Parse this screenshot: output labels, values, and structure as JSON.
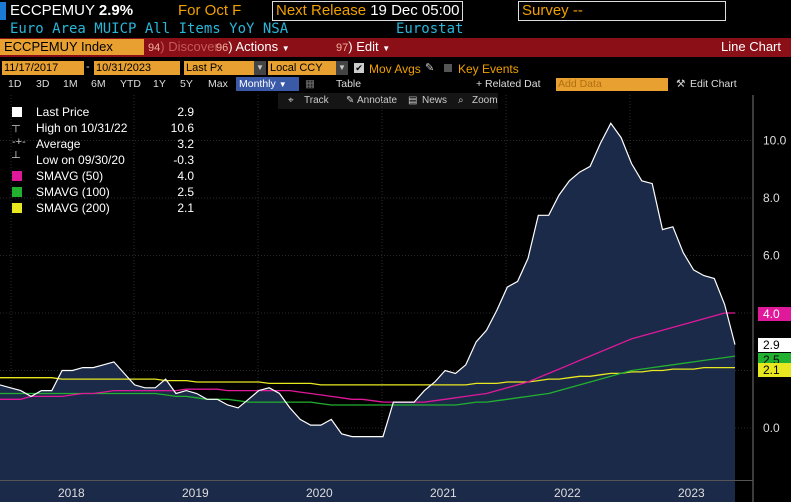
{
  "header": {
    "ticker": "ECCPEMUY",
    "last": "2.9%",
    "for_label": "For Oct F",
    "next_release_label": "Next Release",
    "next_release_value": "19 Dec 05:00",
    "survey_label": "Survey --",
    "description": "Euro Area MUICP All Items YoY NSA",
    "source": "Eurostat"
  },
  "toolbar": {
    "index_value": "ECCPEMUY Index",
    "discover_num": "94",
    "discover_label": "Discover",
    "actions_num": "96",
    "actions_label": "Actions",
    "edit_num": "97",
    "edit_label": "Edit",
    "view_label": "Line Chart"
  },
  "controls": {
    "start_date": "11/17/2017",
    "end_date": "10/31/2023",
    "field": "Last Px",
    "currency": "Local CCY",
    "mov_avgs_label": "Mov Avgs",
    "key_events_label": "Key Events",
    "periods": [
      "1D",
      "3D",
      "1M",
      "6M",
      "YTD",
      "1Y",
      "5Y",
      "Max"
    ],
    "frequency": "Monthly",
    "table_label": "Table",
    "related_data_label": "+ Related Dat",
    "add_data_placeholder": "Add Data",
    "edit_chart_label": "Edit Chart"
  },
  "chart_tools": {
    "track": "Track",
    "annotate": "Annotate",
    "news": "News",
    "zoom": "Zoom"
  },
  "legend": {
    "last_price_label": "Last Price",
    "last_price_value": "2.9",
    "high_label": "High on 10/31/22",
    "high_value": "10.6",
    "average_label": "Average",
    "average_value": "3.2",
    "low_label": "Low on 09/30/20",
    "low_value": "-0.3",
    "sma50_label": "SMAVG (50)",
    "sma50_value": "4.0",
    "sma100_label": "SMAVG (100)",
    "sma100_value": "2.5",
    "sma200_label": "SMAVG (200)",
    "sma200_value": "2.1"
  },
  "colors": {
    "area_fill": "#1b2a48",
    "price_line": "#ffffff",
    "sma50": "#e0189a",
    "sma100": "#22b030",
    "sma200": "#e8e820",
    "accent_orange": "#e8a030",
    "header_red": "#8a0f16"
  },
  "chart_data": {
    "type": "area",
    "y_ticks": [
      "0.0",
      "2.0",
      "4.0",
      "6.0",
      "8.0",
      "10.0"
    ],
    "ylim": [
      -1.2,
      11.4
    ],
    "x_ticks": [
      "2018",
      "2019",
      "2020",
      "2021",
      "2022",
      "2023"
    ],
    "x_start": "2017-11",
    "series": [
      {
        "name": "Last Price",
        "values": [
          1.5,
          1.4,
          1.3,
          1.1,
          1.3,
          1.3,
          2.0,
          2.0,
          2.1,
          2.1,
          2.2,
          2.3,
          1.9,
          1.5,
          1.4,
          1.4,
          1.7,
          1.2,
          1.3,
          1.2,
          1.0,
          1.0,
          0.8,
          0.7,
          1.0,
          1.3,
          1.4,
          1.2,
          0.7,
          0.3,
          0.1,
          0.1,
          0.3,
          -0.2,
          -0.3,
          -0.3,
          -0.3,
          -0.3,
          0.9,
          0.9,
          0.9,
          1.3,
          1.6,
          2.0,
          1.9,
          2.2,
          3.0,
          3.4,
          4.1,
          4.9,
          5.1,
          5.9,
          7.4,
          7.4,
          8.1,
          8.6,
          8.9,
          9.1,
          9.9,
          10.6,
          10.1,
          9.2,
          8.6,
          8.5,
          6.9,
          7.0,
          6.1,
          5.5,
          5.3,
          5.2,
          4.3,
          2.9
        ]
      },
      {
        "name": "SMAVG (50)",
        "values": [
          1.0,
          1.0,
          1.0,
          1.1,
          1.1,
          1.1,
          1.1,
          1.15,
          1.2,
          1.2,
          1.25,
          1.3,
          1.3,
          1.3,
          1.3,
          1.3,
          1.3,
          1.3,
          1.35,
          1.35,
          1.35,
          1.35,
          1.3,
          1.3,
          1.3,
          1.3,
          1.3,
          1.3,
          1.3,
          1.25,
          1.2,
          1.15,
          1.1,
          1.05,
          1.0,
          1.0,
          0.95,
          0.9,
          0.9,
          0.9,
          0.9,
          0.9,
          0.95,
          1.0,
          1.05,
          1.1,
          1.15,
          1.2,
          1.3,
          1.4,
          1.5,
          1.6,
          1.75,
          1.9,
          2.05,
          2.2,
          2.35,
          2.5,
          2.65,
          2.8,
          2.95,
          3.1,
          3.2,
          3.3,
          3.4,
          3.5,
          3.6,
          3.7,
          3.8,
          3.9,
          4.0,
          4.0
        ]
      },
      {
        "name": "SMAVG (100)",
        "values": [
          1.2,
          1.2,
          1.2,
          1.2,
          1.2,
          1.2,
          1.2,
          1.2,
          1.2,
          1.2,
          1.2,
          1.2,
          1.2,
          1.2,
          1.2,
          1.2,
          1.15,
          1.1,
          1.1,
          1.05,
          1.0,
          1.0,
          1.0,
          0.95,
          0.9,
          0.9,
          0.9,
          0.9,
          0.9,
          0.9,
          0.9,
          0.85,
          0.8,
          0.8,
          0.8,
          0.8,
          0.8,
          0.8,
          0.8,
          0.8,
          0.8,
          0.8,
          0.8,
          0.8,
          0.8,
          0.85,
          0.9,
          0.9,
          0.95,
          1.0,
          1.05,
          1.1,
          1.15,
          1.2,
          1.3,
          1.4,
          1.5,
          1.6,
          1.7,
          1.8,
          1.9,
          2.0,
          2.05,
          2.1,
          2.15,
          2.2,
          2.25,
          2.3,
          2.35,
          2.4,
          2.45,
          2.5
        ]
      },
      {
        "name": "SMAVG (200)",
        "values": [
          1.75,
          1.75,
          1.75,
          1.75,
          1.75,
          1.75,
          1.7,
          1.7,
          1.7,
          1.7,
          1.7,
          1.7,
          1.7,
          1.7,
          1.7,
          1.7,
          1.65,
          1.65,
          1.65,
          1.6,
          1.6,
          1.6,
          1.6,
          1.6,
          1.6,
          1.6,
          1.55,
          1.55,
          1.55,
          1.55,
          1.55,
          1.5,
          1.5,
          1.5,
          1.5,
          1.5,
          1.5,
          1.5,
          1.5,
          1.5,
          1.5,
          1.5,
          1.5,
          1.5,
          1.5,
          1.5,
          1.55,
          1.55,
          1.55,
          1.6,
          1.6,
          1.6,
          1.65,
          1.7,
          1.7,
          1.75,
          1.8,
          1.8,
          1.85,
          1.9,
          1.9,
          1.95,
          1.95,
          2.0,
          2.0,
          2.05,
          2.05,
          2.05,
          2.1,
          2.1,
          2.1,
          2.1
        ]
      }
    ],
    "grid": true,
    "legend_position": "top-left"
  }
}
